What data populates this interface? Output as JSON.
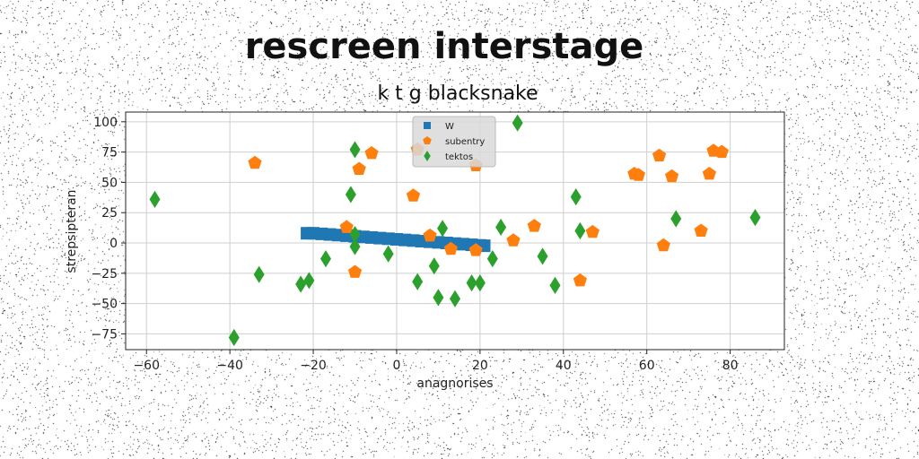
{
  "title": "rescreen interstage",
  "chart_data": {
    "type": "scatter",
    "title": "k t g blacksnake",
    "xlabel": "anagnorises",
    "ylabel": "strepsipteran",
    "xlim": [
      -65,
      93
    ],
    "ylim": [
      -88,
      108
    ],
    "xticks": [
      -60,
      -40,
      -20,
      0,
      20,
      40,
      60,
      80
    ],
    "yticks": [
      -75,
      -50,
      -25,
      0,
      25,
      50,
      75,
      100
    ],
    "grid": true,
    "legend_position": "top-center",
    "series": [
      {
        "name": "W",
        "marker": "square",
        "color": "#1f77b4",
        "points": [
          [
            -21.5,
            8
          ],
          [
            -20,
            8
          ],
          [
            -18,
            7.5
          ],
          [
            -16,
            7
          ],
          [
            -14,
            6.5
          ],
          [
            -12,
            6
          ],
          [
            -10,
            5.5
          ],
          [
            -8,
            5
          ],
          [
            -6,
            4.5
          ],
          [
            -4,
            4
          ],
          [
            -2,
            3.5
          ],
          [
            0,
            3
          ],
          [
            2,
            2.5
          ],
          [
            4,
            2
          ],
          [
            6,
            1.5
          ],
          [
            8,
            1
          ],
          [
            10,
            0.5
          ],
          [
            12,
            0
          ],
          [
            14,
            -0.5
          ],
          [
            16,
            -1
          ],
          [
            18,
            -1.5
          ],
          [
            20,
            -2
          ],
          [
            21,
            -2.3
          ]
        ]
      },
      {
        "name": "subentry",
        "marker": "pentagon",
        "color": "#ff7f0e",
        "points": [
          [
            -34,
            66
          ],
          [
            -9,
            61
          ],
          [
            -6,
            74
          ],
          [
            4,
            39
          ],
          [
            5,
            77
          ],
          [
            19,
            64
          ],
          [
            -12,
            13
          ],
          [
            8,
            6
          ],
          [
            13,
            -5
          ],
          [
            19,
            -6
          ],
          [
            28,
            2
          ],
          [
            33,
            14
          ],
          [
            47,
            9
          ],
          [
            44,
            -31
          ],
          [
            -10,
            -24
          ],
          [
            57,
            57
          ],
          [
            58,
            56
          ],
          [
            63,
            72
          ],
          [
            66,
            55
          ],
          [
            64,
            -2
          ],
          [
            73,
            10
          ],
          [
            75,
            57
          ],
          [
            76,
            76
          ],
          [
            78,
            75
          ]
        ]
      },
      {
        "name": "tektos",
        "marker": "diamond",
        "color": "#2ca02c",
        "points": [
          [
            -58,
            36
          ],
          [
            -39,
            -78
          ],
          [
            -33,
            -26
          ],
          [
            -23,
            -34
          ],
          [
            -21,
            -31
          ],
          [
            -17,
            -13
          ],
          [
            -11,
            40
          ],
          [
            -10,
            77
          ],
          [
            -10,
            7
          ],
          [
            -10,
            -3
          ],
          [
            -2,
            -9
          ],
          [
            5,
            -32
          ],
          [
            9,
            -19
          ],
          [
            10,
            -45
          ],
          [
            11,
            12
          ],
          [
            14,
            -46
          ],
          [
            18,
            -33
          ],
          [
            20,
            -33
          ],
          [
            23,
            -13
          ],
          [
            25,
            13
          ],
          [
            29,
            99
          ],
          [
            35,
            -11
          ],
          [
            38,
            -35
          ],
          [
            43,
            38
          ],
          [
            44,
            10
          ],
          [
            67,
            20
          ],
          [
            86,
            21
          ]
        ]
      }
    ]
  }
}
